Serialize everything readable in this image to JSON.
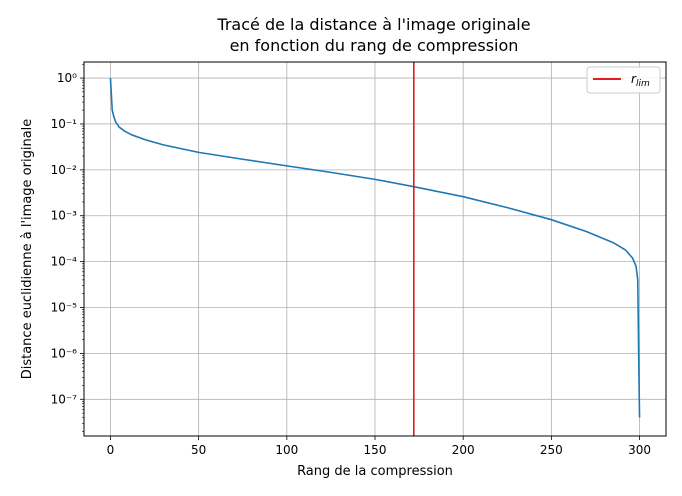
{
  "chart_data": {
    "type": "line",
    "title_lines": [
      "Tracé de la distance à l'image originale",
      "en fonction du rang de compression"
    ],
    "xlabel": "Rang de la compression",
    "ylabel": "Distance euclidienne à l'image originale",
    "xlim": [
      -15,
      315
    ],
    "ylim_log10": [
      -7.8,
      0.35
    ],
    "yscale": "log",
    "grid": true,
    "x_ticks": [
      0,
      50,
      100,
      150,
      200,
      250,
      300
    ],
    "y_ticks": [
      {
        "exp": 0,
        "label": "10⁰"
      },
      {
        "exp": -1,
        "label": "10⁻¹"
      },
      {
        "exp": -2,
        "label": "10⁻²"
      },
      {
        "exp": -3,
        "label": "10⁻³"
      },
      {
        "exp": -4,
        "label": "10⁻⁴"
      },
      {
        "exp": -5,
        "label": "10⁻⁵"
      },
      {
        "exp": -6,
        "label": "10⁻⁶"
      },
      {
        "exp": -7,
        "label": "10⁻⁷"
      }
    ],
    "series": [
      {
        "color": "#1f77b4",
        "points": [
          [
            0,
            1.0
          ],
          [
            1,
            0.2
          ],
          [
            2,
            0.14
          ],
          [
            3,
            0.11
          ],
          [
            5,
            0.085
          ],
          [
            8,
            0.07
          ],
          [
            12,
            0.058
          ],
          [
            20,
            0.045
          ],
          [
            30,
            0.035
          ],
          [
            50,
            0.024
          ],
          [
            75,
            0.017
          ],
          [
            100,
            0.0122
          ],
          [
            125,
            0.0088
          ],
          [
            150,
            0.0062
          ],
          [
            172,
            0.0043
          ],
          [
            200,
            0.0026
          ],
          [
            225,
            0.0015
          ],
          [
            250,
            0.00082
          ],
          [
            270,
            0.00045
          ],
          [
            285,
            0.00026
          ],
          [
            292,
            0.00018
          ],
          [
            296,
            0.00012
          ],
          [
            298,
            8e-05
          ],
          [
            299,
            4e-05
          ],
          [
            299.5,
            1e-06
          ],
          [
            300,
            4e-08
          ]
        ]
      }
    ],
    "vline": {
      "x": 172,
      "color": "#e41a1c",
      "label": "r",
      "label_sub": "lim"
    },
    "legend_position": "top-right"
  }
}
